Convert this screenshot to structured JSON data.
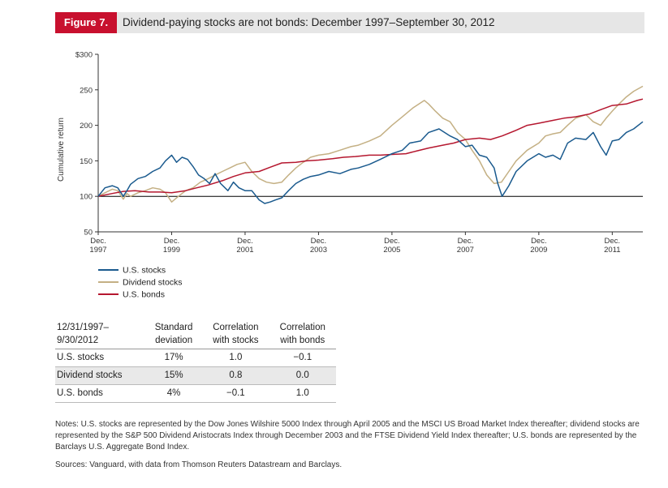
{
  "header": {
    "figure_label": "Figure 7.",
    "title": "Dividend-paying stocks are not bonds: December 1997–September 30, 2012"
  },
  "chart_data": {
    "type": "line",
    "title": "Dividend-paying stocks are not bonds: December 1997–September 30, 2012",
    "ylabel": "Cumulative return",
    "xlabel": "",
    "ylim": [
      50,
      300
    ],
    "xlim": [
      1997.917,
      2012.75
    ],
    "y_ticks": [
      50,
      100,
      150,
      200,
      250,
      300
    ],
    "y_tick_labels": [
      "50",
      "100",
      "150",
      "200",
      "250",
      "$300"
    ],
    "reference_line": 100,
    "x_ticks": [
      1997.917,
      1999.917,
      2001.917,
      2003.917,
      2005.917,
      2007.917,
      2009.917,
      2011.917
    ],
    "x_tick_labels": [
      {
        "top": "Dec.",
        "bottom": "1997"
      },
      {
        "top": "Dec.",
        "bottom": "1999"
      },
      {
        "top": "Dec.",
        "bottom": "2001"
      },
      {
        "top": "Dec.",
        "bottom": "2003"
      },
      {
        "top": "Dec.",
        "bottom": "2005"
      },
      {
        "top": "Dec.",
        "bottom": "2007"
      },
      {
        "top": "Dec.",
        "bottom": "2009"
      },
      {
        "top": "Dec.",
        "bottom": "2011"
      }
    ],
    "legend_position": "below-left",
    "series": [
      {
        "name": "U.S. stocks",
        "color": "#1a5a8e",
        "x": [
          1997.917,
          1998.1,
          1998.3,
          1998.45,
          1998.6,
          1998.7,
          1998.8,
          1999.0,
          1999.2,
          1999.4,
          1999.6,
          1999.75,
          1999.917,
          2000.05,
          2000.2,
          2000.35,
          2000.5,
          2000.65,
          2000.8,
          2000.95,
          2001.1,
          2001.25,
          2001.45,
          2001.6,
          2001.75,
          2001.917,
          2002.1,
          2002.3,
          2002.45,
          2002.6,
          2002.75,
          2002.917,
          2003.1,
          2003.3,
          2003.5,
          2003.7,
          2003.917,
          2004.2,
          2004.5,
          2004.8,
          2005.0,
          2005.3,
          2005.6,
          2005.917,
          2006.2,
          2006.4,
          2006.7,
          2006.917,
          2007.2,
          2007.5,
          2007.7,
          2007.917,
          2008.1,
          2008.3,
          2008.5,
          2008.7,
          2008.8,
          2008.917,
          2009.1,
          2009.3,
          2009.6,
          2009.917,
          2010.1,
          2010.3,
          2010.5,
          2010.7,
          2010.917,
          2011.2,
          2011.4,
          2011.6,
          2011.75,
          2011.917,
          2012.1,
          2012.3,
          2012.5,
          2012.75
        ],
        "y": [
          100,
          112,
          115,
          112,
          100,
          108,
          117,
          125,
          128,
          135,
          140,
          150,
          158,
          148,
          155,
          152,
          142,
          130,
          125,
          118,
          132,
          118,
          108,
          120,
          112,
          108,
          108,
          95,
          90,
          92,
          95,
          98,
          108,
          118,
          124,
          128,
          130,
          135,
          132,
          138,
          140,
          145,
          152,
          160,
          165,
          175,
          178,
          190,
          195,
          185,
          180,
          170,
          172,
          158,
          155,
          140,
          118,
          100,
          115,
          135,
          150,
          160,
          155,
          158,
          152,
          175,
          182,
          180,
          190,
          170,
          158,
          178,
          180,
          190,
          195,
          205
        ]
      },
      {
        "name": "Dividend stocks",
        "color": "#c4b084",
        "x": [
          1997.917,
          1998.1,
          1998.3,
          1998.45,
          1998.6,
          1998.7,
          1998.8,
          1999.0,
          1999.2,
          1999.4,
          1999.6,
          1999.75,
          1999.917,
          2000.1,
          2000.3,
          2000.5,
          2000.7,
          2000.917,
          2001.1,
          2001.3,
          2001.5,
          2001.7,
          2001.917,
          2002.1,
          2002.3,
          2002.5,
          2002.7,
          2002.917,
          2003.1,
          2003.3,
          2003.5,
          2003.7,
          2003.917,
          2004.2,
          2004.5,
          2004.8,
          2005.0,
          2005.3,
          2005.6,
          2005.917,
          2006.2,
          2006.5,
          2006.8,
          2006.917,
          2007.1,
          2007.3,
          2007.5,
          2007.7,
          2007.917,
          2008.1,
          2008.3,
          2008.5,
          2008.7,
          2008.9,
          2009.1,
          2009.3,
          2009.6,
          2009.917,
          2010.1,
          2010.3,
          2010.5,
          2010.7,
          2010.917,
          2011.2,
          2011.4,
          2011.6,
          2011.75,
          2011.917,
          2012.1,
          2012.3,
          2012.5,
          2012.75
        ],
        "y": [
          100,
          105,
          110,
          108,
          96,
          104,
          100,
          105,
          108,
          112,
          110,
          105,
          92,
          100,
          108,
          112,
          120,
          125,
          130,
          135,
          140,
          145,
          148,
          135,
          125,
          120,
          118,
          120,
          130,
          140,
          148,
          155,
          158,
          160,
          165,
          170,
          172,
          178,
          185,
          200,
          212,
          225,
          235,
          230,
          220,
          210,
          205,
          190,
          180,
          165,
          150,
          130,
          118,
          120,
          135,
          150,
          165,
          175,
          185,
          188,
          190,
          200,
          210,
          215,
          205,
          200,
          210,
          220,
          230,
          240,
          248,
          255
        ]
      },
      {
        "name": "U.S. bonds",
        "color": "#b5172f",
        "x": [
          1997.917,
          1998.3,
          1998.6,
          1998.917,
          1999.3,
          1999.6,
          1999.917,
          2000.3,
          2000.6,
          2000.917,
          2001.3,
          2001.6,
          2001.917,
          2002.3,
          2002.6,
          2002.917,
          2003.3,
          2003.6,
          2003.917,
          2004.3,
          2004.6,
          2004.917,
          2005.3,
          2005.6,
          2005.917,
          2006.3,
          2006.6,
          2006.917,
          2007.3,
          2007.6,
          2007.917,
          2008.3,
          2008.6,
          2008.917,
          2009.3,
          2009.6,
          2009.917,
          2010.3,
          2010.6,
          2010.917,
          2011.3,
          2011.6,
          2011.917,
          2012.3,
          2012.6,
          2012.75
        ],
        "y": [
          100,
          104,
          107,
          108,
          106,
          106,
          105,
          108,
          112,
          116,
          122,
          128,
          133,
          135,
          141,
          147,
          148,
          150,
          151,
          153,
          155,
          156,
          158,
          158,
          159,
          160,
          164,
          168,
          172,
          175,
          180,
          182,
          180,
          185,
          193,
          200,
          203,
          207,
          210,
          212,
          216,
          222,
          228,
          230,
          235,
          237
        ]
      }
    ]
  },
  "stats_table": {
    "headers": [
      {
        "line1": "12/31/1997–",
        "line2": "9/30/2012"
      },
      {
        "line1": "Standard",
        "line2": "deviation"
      },
      {
        "line1": "Correlation",
        "line2": "with stocks"
      },
      {
        "line1": "Correlation",
        "line2": "with bonds"
      }
    ],
    "rows": [
      {
        "label": "U.S. stocks",
        "std": "17%",
        "corr_stocks": "1.0",
        "corr_bonds": "−0.1"
      },
      {
        "label": "Dividend stocks",
        "std": "15%",
        "corr_stocks": "0.8",
        "corr_bonds": "0.0"
      },
      {
        "label": "U.S. bonds",
        "std": "4%",
        "corr_stocks": "−0.1",
        "corr_bonds": "1.0"
      }
    ]
  },
  "notes": "Notes: U.S. stocks are represented by the Dow Jones Wilshire 5000 Index through April 2005 and the MSCI US Broad Market Index thereafter; dividend stocks are represented by the S&P 500 Dividend Aristocrats Index through December 2003 and the FTSE Dividend Yield Index thereafter; U.S. bonds are represented by the Barclays U.S. Aggregate Bond Index.",
  "sources": "Sources: Vanguard, with data from Thomson Reuters Datastream and Barclays."
}
